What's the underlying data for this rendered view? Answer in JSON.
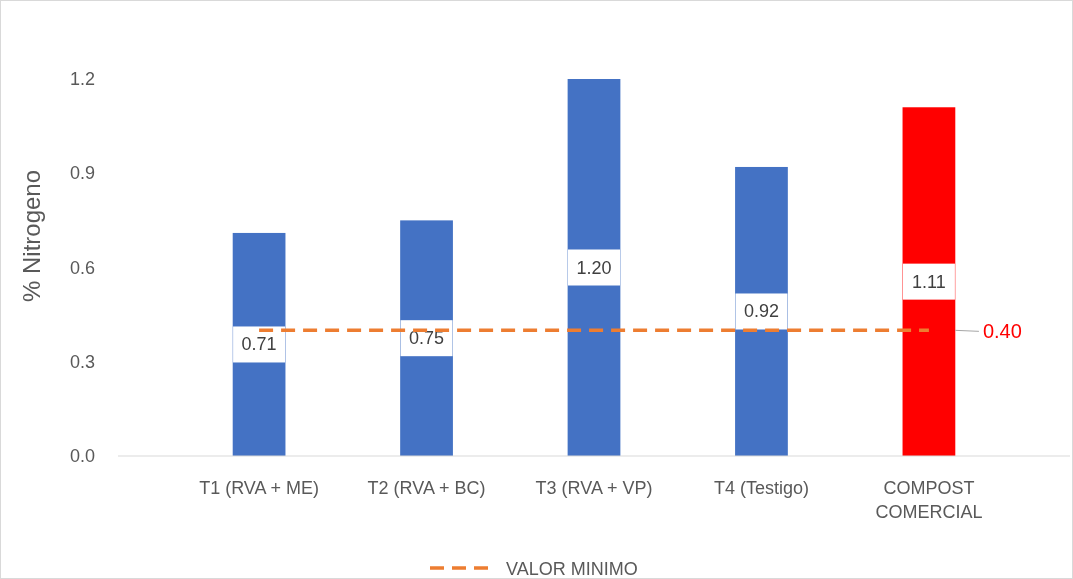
{
  "chart_data": {
    "type": "bar",
    "ylabel": "% Nitrogeno",
    "categories": [
      "T1 (RVA + ME)",
      "T2 (RVA + BC)",
      "T3 (RVA + VP)",
      "T4 (Testigo)",
      "COMPOST COMERCIAL"
    ],
    "values": [
      0.71,
      0.75,
      1.2,
      0.92,
      1.11
    ],
    "value_labels": [
      "0.71",
      "0.75",
      "1.20",
      "0.92",
      "1.11"
    ],
    "colors": [
      "#4472c4",
      "#4472c4",
      "#4472c4",
      "#4472c4",
      "#ff0000"
    ],
    "series": [
      {
        "type": "line",
        "name": "VALOR MINIMO",
        "color": "#ed7d31",
        "line_style": "dashed",
        "values": [
          0.4,
          0.4,
          0.4,
          0.4,
          0.4
        ]
      }
    ],
    "annotations": [
      {
        "text": "0.40",
        "x": "COMPOST COMERCIAL",
        "y": 0.4
      }
    ],
    "ylim": [
      0,
      1.2
    ],
    "yticks": [
      {
        "value": 0,
        "label": "0.0"
      },
      {
        "value": 0.3,
        "label": "0.3"
      },
      {
        "value": 0.6,
        "label": "0.6"
      },
      {
        "value": 0.9,
        "label": "0.9"
      },
      {
        "value": 1.2,
        "label": "1.2"
      }
    ],
    "legend": "bottom",
    "grid": false
  }
}
